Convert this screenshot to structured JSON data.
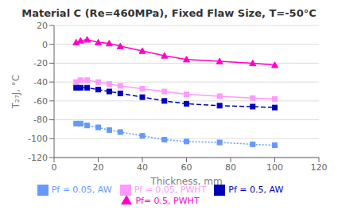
{
  "chart_data": {
    "type": "line",
    "title": "Material C (Re=460MPa), Fixed Flaw Size, T=-50°C",
    "x_label": "Thickness, mm",
    "y_label": "T₂₇J, °C",
    "x": [
      10,
      12,
      15,
      20,
      25,
      30,
      40,
      50,
      60,
      75,
      90,
      100
    ],
    "xlim": [
      0,
      120
    ],
    "ylim": [
      -120,
      20
    ],
    "xticks": [
      0,
      20,
      40,
      60,
      80,
      100,
      120
    ],
    "yticks": [
      -120,
      -100,
      -80,
      -60,
      -40,
      -20,
      0,
      20
    ],
    "grid": "y",
    "legend": "bottom",
    "series": [
      {
        "name": "Pf= 0.5, PWHT",
        "color": "#ff00cc",
        "marker": "triangle",
        "line_style": "solid",
        "values": [
          2,
          4,
          5,
          2,
          1,
          -2,
          -7,
          -12,
          -16,
          -18,
          -20,
          -22
        ]
      },
      {
        "name": "Pf = 0.05, PWHT",
        "color": "#ff99ff",
        "marker": "square",
        "line_style": "solid",
        "values": [
          -40,
          -38,
          -38,
          -40,
          -42,
          -44,
          -47,
          -50,
          -53,
          -55,
          -57,
          -58
        ]
      },
      {
        "name": "Pf = 0.5, AW",
        "color": "#0000bb",
        "marker": "square",
        "line_style": "dashed",
        "values": [
          -46,
          -46,
          -46,
          -48,
          -50,
          -52,
          -56,
          -60,
          -63,
          -65,
          -66,
          -67
        ]
      },
      {
        "name": "Pf = 0.05, AW",
        "color": "#6699ff",
        "marker": "square",
        "line_style": "dotted",
        "values": [
          -84,
          -84,
          -86,
          -88,
          -91,
          -93,
          -97,
          -101,
          -103,
          -104,
          -106,
          -107
        ]
      }
    ]
  }
}
